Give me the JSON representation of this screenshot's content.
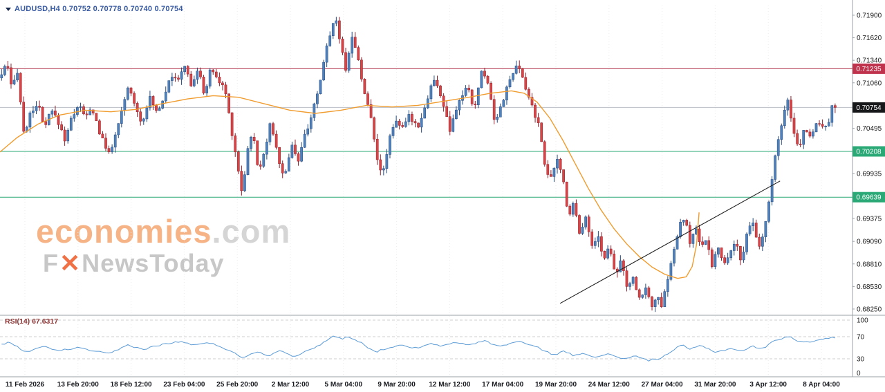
{
  "header": {
    "symbol_ohlc": "AUDUSD,H4 0.70752 0.70778 0.70740 0.70754"
  },
  "watermark": {
    "brand": "economies",
    "domain": ".com",
    "tagline_f": "F",
    "tagline_x": "✕",
    "tagline_rest": "NewsToday"
  },
  "rsi_panel": {
    "label": "RSI(14) 67.6317",
    "value": 67.6317,
    "levels": [
      100,
      70,
      30,
      0
    ],
    "line_color": "#5b9bd5"
  },
  "chart_data": {
    "type": "candlestick",
    "symbol": "AUDUSD",
    "timeframe": "H4",
    "ohlc_current": {
      "open": 0.70752,
      "high": 0.70778,
      "low": 0.7074,
      "close": 0.70754
    },
    "y_axis": {
      "range": [
        0.68181,
        0.7202
      ],
      "ticks": [
        0.719,
        0.7162,
        0.7134,
        0.7106,
        0.70495,
        0.69935,
        0.69375,
        0.6909,
        0.6881,
        0.6853,
        0.6825
      ]
    },
    "x_axis": {
      "labels": [
        "11 Feb 2026",
        "13 Feb 20:00",
        "18 Feb 12:00",
        "23 Feb 04:00",
        "25 Feb 20:00",
        "2 Mar 12:00",
        "5 Mar 04:00",
        "9 Mar 20:00",
        "12 Mar 12:00",
        "17 Mar 04:00",
        "19 Mar 20:00",
        "24 Mar 12:00",
        "27 Mar 04:00",
        "31 Mar 20:00",
        "3 Apr 12:00",
        "8 Apr 04:00"
      ]
    },
    "levels": [
      {
        "value": 0.71235,
        "color": "#b23a50",
        "type": "resistance"
      },
      {
        "value": 0.70754,
        "color": "#b9bec4",
        "type": "current-price"
      },
      {
        "value": 0.70208,
        "color": "#2aa876",
        "type": "support"
      },
      {
        "value": 0.69639,
        "color": "#2aa876",
        "type": "support"
      }
    ],
    "badges": [
      {
        "text": "0.71235",
        "bg": "#c0334d"
      },
      {
        "text": "0.70754",
        "bg": "#17181a"
      },
      {
        "text": "0.70208",
        "bg": "#2aa876"
      },
      {
        "text": "0.69639",
        "bg": "#2aa876"
      }
    ],
    "candle_count": 265,
    "colors": {
      "up": "#4f81bd",
      "up_border": "#24497c",
      "down": "#d94545",
      "down_border": "#8f1f2c"
    },
    "price_path": [
      [
        0.0,
        0.7112
      ],
      [
        0.008,
        0.713
      ],
      [
        0.014,
        0.7095
      ],
      [
        0.02,
        0.7125
      ],
      [
        0.028,
        0.7042
      ],
      [
        0.036,
        0.7068
      ],
      [
        0.044,
        0.7082
      ],
      [
        0.052,
        0.7048
      ],
      [
        0.06,
        0.7072
      ],
      [
        0.068,
        0.7058
      ],
      [
        0.076,
        0.7036
      ],
      [
        0.084,
        0.7062
      ],
      [
        0.092,
        0.708
      ],
      [
        0.1,
        0.7062
      ],
      [
        0.108,
        0.7075
      ],
      [
        0.118,
        0.704
      ],
      [
        0.126,
        0.702
      ],
      [
        0.133,
        0.703
      ],
      [
        0.141,
        0.7062
      ],
      [
        0.15,
        0.71
      ],
      [
        0.158,
        0.7082
      ],
      [
        0.166,
        0.7055
      ],
      [
        0.175,
        0.7088
      ],
      [
        0.184,
        0.707
      ],
      [
        0.192,
        0.7088
      ],
      [
        0.2,
        0.7118
      ],
      [
        0.208,
        0.7105
      ],
      [
        0.216,
        0.713
      ],
      [
        0.224,
        0.7102
      ],
      [
        0.232,
        0.7122
      ],
      [
        0.24,
        0.7092
      ],
      [
        0.248,
        0.7126
      ],
      [
        0.256,
        0.7108
      ],
      [
        0.264,
        0.7098
      ],
      [
        0.272,
        0.7045
      ],
      [
        0.28,
        0.6995
      ],
      [
        0.284,
        0.6968
      ],
      [
        0.29,
        0.702
      ],
      [
        0.296,
        0.7048
      ],
      [
        0.303,
        0.6995
      ],
      [
        0.31,
        0.7022
      ],
      [
        0.318,
        0.7058
      ],
      [
        0.326,
        0.7012
      ],
      [
        0.334,
        0.6988
      ],
      [
        0.342,
        0.7032
      ],
      [
        0.35,
        0.7008
      ],
      [
        0.358,
        0.7042
      ],
      [
        0.366,
        0.7068
      ],
      [
        0.374,
        0.7095
      ],
      [
        0.38,
        0.7135
      ],
      [
        0.388,
        0.7172
      ],
      [
        0.394,
        0.7188
      ],
      [
        0.4,
        0.715
      ],
      [
        0.406,
        0.7122
      ],
      [
        0.412,
        0.7165
      ],
      [
        0.42,
        0.7138
      ],
      [
        0.428,
        0.709
      ],
      [
        0.436,
        0.706
      ],
      [
        0.443,
        0.701
      ],
      [
        0.449,
        0.699
      ],
      [
        0.456,
        0.7035
      ],
      [
        0.464,
        0.7062
      ],
      [
        0.472,
        0.7048
      ],
      [
        0.48,
        0.7065
      ],
      [
        0.49,
        0.7052
      ],
      [
        0.5,
        0.708
      ],
      [
        0.508,
        0.7112
      ],
      [
        0.518,
        0.7088
      ],
      [
        0.528,
        0.7045
      ],
      [
        0.538,
        0.7082
      ],
      [
        0.548,
        0.7102
      ],
      [
        0.556,
        0.7072
      ],
      [
        0.565,
        0.712
      ],
      [
        0.572,
        0.711
      ],
      [
        0.58,
        0.7058
      ],
      [
        0.59,
        0.7085
      ],
      [
        0.6,
        0.7115
      ],
      [
        0.608,
        0.7128
      ],
      [
        0.616,
        0.71
      ],
      [
        0.625,
        0.7075
      ],
      [
        0.633,
        0.7048
      ],
      [
        0.64,
        0.7
      ],
      [
        0.647,
        0.6985
      ],
      [
        0.653,
        0.7012
      ],
      [
        0.66,
        0.699
      ],
      [
        0.667,
        0.694
      ],
      [
        0.673,
        0.6958
      ],
      [
        0.68,
        0.692
      ],
      [
        0.687,
        0.694
      ],
      [
        0.694,
        0.6902
      ],
      [
        0.701,
        0.6918
      ],
      [
        0.708,
        0.6885
      ],
      [
        0.715,
        0.6905
      ],
      [
        0.722,
        0.6868
      ],
      [
        0.729,
        0.6888
      ],
      [
        0.736,
        0.6848
      ],
      [
        0.743,
        0.6862
      ],
      [
        0.75,
        0.6838
      ],
      [
        0.757,
        0.6852
      ],
      [
        0.764,
        0.6828
      ],
      [
        0.77,
        0.6842
      ],
      [
        0.776,
        0.6826
      ],
      [
        0.783,
        0.6862
      ],
      [
        0.79,
        0.6895
      ],
      [
        0.797,
        0.6928
      ],
      [
        0.803,
        0.6938
      ],
      [
        0.81,
        0.6905
      ],
      [
        0.816,
        0.6928
      ],
      [
        0.822,
        0.6898
      ],
      [
        0.828,
        0.6912
      ],
      [
        0.835,
        0.688
      ],
      [
        0.842,
        0.6902
      ],
      [
        0.849,
        0.6878
      ],
      [
        0.856,
        0.6895
      ],
      [
        0.863,
        0.6912
      ],
      [
        0.87,
        0.688
      ],
      [
        0.877,
        0.6922
      ],
      [
        0.884,
        0.6932
      ],
      [
        0.89,
        0.6898
      ],
      [
        0.896,
        0.692
      ],
      [
        0.903,
        0.6965
      ],
      [
        0.91,
        0.7018
      ],
      [
        0.917,
        0.7058
      ],
      [
        0.924,
        0.7082
      ],
      [
        0.93,
        0.7048
      ],
      [
        0.937,
        0.7022
      ],
      [
        0.944,
        0.7052
      ],
      [
        0.951,
        0.7038
      ],
      [
        0.958,
        0.706
      ],
      [
        0.965,
        0.7048
      ],
      [
        0.972,
        0.7058
      ],
      [
        0.979,
        0.7088
      ],
      [
        0.985,
        0.7075
      ],
      [
        0.99,
        0.7075
      ]
    ],
    "ma_line": {
      "color": "#f09c2e",
      "points": [
        [
          0.0,
          0.702
        ],
        [
          0.02,
          0.7038
        ],
        [
          0.045,
          0.7055
        ],
        [
          0.07,
          0.7066
        ],
        [
          0.1,
          0.7072
        ],
        [
          0.13,
          0.707
        ],
        [
          0.16,
          0.7073
        ],
        [
          0.19,
          0.708
        ],
        [
          0.22,
          0.7086
        ],
        [
          0.25,
          0.709
        ],
        [
          0.28,
          0.7088
        ],
        [
          0.31,
          0.708
        ],
        [
          0.34,
          0.7072
        ],
        [
          0.37,
          0.7068
        ],
        [
          0.4,
          0.7072
        ],
        [
          0.43,
          0.7078
        ],
        [
          0.46,
          0.7076
        ],
        [
          0.49,
          0.7078
        ],
        [
          0.52,
          0.7083
        ],
        [
          0.55,
          0.7088
        ],
        [
          0.575,
          0.7093
        ],
        [
          0.6,
          0.7096
        ],
        [
          0.615,
          0.7093
        ],
        [
          0.63,
          0.7082
        ],
        [
          0.645,
          0.7062
        ],
        [
          0.66,
          0.7035
        ],
        [
          0.675,
          0.7005
        ],
        [
          0.69,
          0.6975
        ],
        [
          0.705,
          0.6948
        ],
        [
          0.72,
          0.6925
        ],
        [
          0.735,
          0.6906
        ],
        [
          0.75,
          0.689
        ],
        [
          0.765,
          0.6877
        ],
        [
          0.78,
          0.6868
        ],
        [
          0.795,
          0.6863
        ],
        [
          0.805,
          0.6865
        ],
        [
          0.812,
          0.6878
        ],
        [
          0.817,
          0.6905
        ],
        [
          0.82,
          0.6945
        ]
      ]
    },
    "trendline": {
      "color": "#1c1c1c",
      "from": [
        0.657,
        0.6832
      ],
      "to": [
        0.915,
        0.6984
      ]
    },
    "rsi": {
      "period": 14,
      "value": 67.6317,
      "points": [
        [
          0.0,
          55
        ],
        [
          0.012,
          60
        ],
        [
          0.03,
          42
        ],
        [
          0.05,
          52
        ],
        [
          0.07,
          45
        ],
        [
          0.09,
          50
        ],
        [
          0.11,
          44
        ],
        [
          0.128,
          39
        ],
        [
          0.15,
          55
        ],
        [
          0.168,
          47
        ],
        [
          0.19,
          56
        ],
        [
          0.212,
          61
        ],
        [
          0.228,
          55
        ],
        [
          0.248,
          59
        ],
        [
          0.268,
          46
        ],
        [
          0.284,
          32
        ],
        [
          0.3,
          43
        ],
        [
          0.315,
          36
        ],
        [
          0.33,
          46
        ],
        [
          0.345,
          34
        ],
        [
          0.362,
          45
        ],
        [
          0.378,
          58
        ],
        [
          0.392,
          72
        ],
        [
          0.4,
          66
        ],
        [
          0.41,
          70
        ],
        [
          0.425,
          58
        ],
        [
          0.44,
          42
        ],
        [
          0.455,
          50
        ],
        [
          0.47,
          54
        ],
        [
          0.49,
          49
        ],
        [
          0.505,
          57
        ],
        [
          0.52,
          53
        ],
        [
          0.535,
          60
        ],
        [
          0.55,
          55
        ],
        [
          0.568,
          63
        ],
        [
          0.585,
          52
        ],
        [
          0.608,
          62
        ],
        [
          0.633,
          49
        ],
        [
          0.65,
          37
        ],
        [
          0.662,
          44
        ],
        [
          0.672,
          36
        ],
        [
          0.685,
          41
        ],
        [
          0.7,
          32
        ],
        [
          0.715,
          39
        ],
        [
          0.73,
          30
        ],
        [
          0.745,
          35
        ],
        [
          0.76,
          27
        ],
        [
          0.775,
          31
        ],
        [
          0.79,
          46
        ],
        [
          0.8,
          55
        ],
        [
          0.81,
          47
        ],
        [
          0.822,
          54
        ],
        [
          0.84,
          42
        ],
        [
          0.858,
          49
        ],
        [
          0.87,
          44
        ],
        [
          0.884,
          53
        ],
        [
          0.893,
          47
        ],
        [
          0.91,
          64
        ],
        [
          0.925,
          71
        ],
        [
          0.935,
          63
        ],
        [
          0.945,
          59
        ],
        [
          0.958,
          64
        ],
        [
          0.972,
          67
        ],
        [
          0.982,
          74
        ],
        [
          0.99,
          68
        ]
      ]
    }
  }
}
